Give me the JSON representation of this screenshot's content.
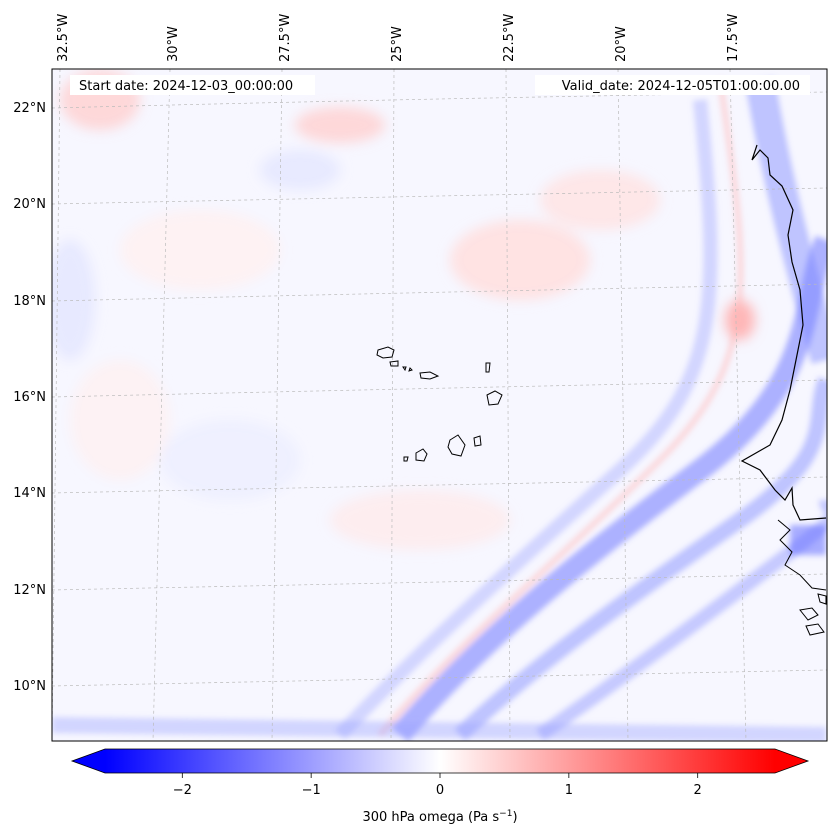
{
  "map": {
    "start_date_label": "Start date: 2024-12-03_00:00:00",
    "valid_date_label": "Valid_date: 2024-12-05T01:00:00.00",
    "variable": "300 hPa omega",
    "lon_labels": [
      "32.5°W",
      "30°W",
      "27.5°W",
      "25°W",
      "22.5°W",
      "20°W",
      "17.5°W"
    ],
    "lat_labels": [
      "22°N",
      "20°N",
      "18°N",
      "16°N",
      "14°N",
      "12°N",
      "10°N"
    ]
  },
  "colorbar": {
    "min": -2.6,
    "max": 2.6,
    "ticks": [
      -2,
      -1,
      0,
      1,
      2
    ],
    "tick_labels": [
      "−2",
      "−1",
      "0",
      "1",
      "2"
    ],
    "label_main": "300 hPa omega (Pa s",
    "label_sup": "−1",
    "label_close": ")",
    "low_color": "#0000ff",
    "mid_color": "#ffffff",
    "high_color": "#ff0000"
  },
  "colors": {
    "background_field": "#f7f7ff",
    "coastline": "#000000",
    "gridline": "#bbbbbb"
  }
}
